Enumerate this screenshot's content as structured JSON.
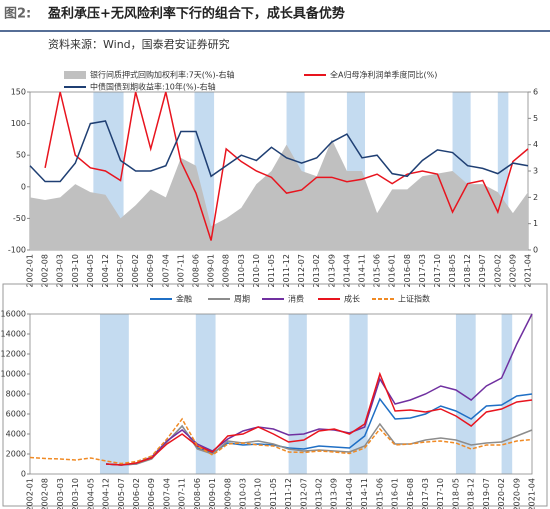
{
  "header": {
    "figure_label": "图2:",
    "title": "盈利承压+无风险利率下行的组合下，成长具备优势",
    "source": "资料来源：Wind，国泰君安证券研究"
  },
  "chart_data": [
    {
      "type": "line",
      "categories": [
        "2002-01",
        "2002-08",
        "2003-03",
        "2003-10",
        "2004-05",
        "2004-12",
        "2005-07",
        "2006-02",
        "2006-09",
        "2007-04",
        "2007-11",
        "2008-06",
        "2009-01",
        "2009-08",
        "2010-03",
        "2010-10",
        "2011-05",
        "2011-12",
        "2012-07",
        "2013-02",
        "2013-09",
        "2014-04",
        "2014-11",
        "2015-06",
        "2016-01",
        "2016-08",
        "2017-03",
        "2017-10",
        "2018-05",
        "2018-12",
        "2019-07",
        "2020-02",
        "2020-09",
        "2021-04"
      ],
      "ylim": [
        -100,
        150
      ],
      "yticks": [
        -100,
        -50,
        0,
        50,
        100,
        150
      ],
      "y2lim": [
        0,
        6
      ],
      "y2ticks": [
        0,
        1,
        2,
        3,
        4,
        5,
        6
      ],
      "highlights": [
        [
          4.2,
          6
        ],
        [
          10.9,
          12
        ],
        [
          17,
          18
        ],
        [
          21,
          22
        ],
        [
          28,
          29
        ],
        [
          31,
          31.5
        ]
      ],
      "series": [
        {
          "name": "银行间质押式回购加权利率:7天(%)-右轴",
          "type": "area",
          "axis": "y2",
          "color": "#c0c0c0",
          "values": [
            2.0,
            1.9,
            2.0,
            2.5,
            2.2,
            2.1,
            1.2,
            1.7,
            2.3,
            2.0,
            3.5,
            3.2,
            0.9,
            1.2,
            1.6,
            2.5,
            3.0,
            4.0,
            3.0,
            2.8,
            4.2,
            3.0,
            3.0,
            1.4,
            2.3,
            2.3,
            2.8,
            2.9,
            3.0,
            2.5,
            2.5,
            2.2,
            1.4,
            2.2
          ]
        },
        {
          "name": "全A归母净利润单季度同比(%)",
          "type": "line",
          "color": "#e8141e",
          "values": [
            null,
            30,
            150,
            50,
            30,
            25,
            10,
            150,
            60,
            150,
            40,
            -10,
            -85,
            60,
            40,
            25,
            15,
            -10,
            -5,
            15,
            15,
            8,
            12,
            20,
            5,
            20,
            25,
            20,
            -40,
            5,
            10,
            -40,
            40,
            60
          ]
        },
        {
          "name": "中债国债到期收益率:10年(%)-右轴",
          "type": "line",
          "axis": "y2",
          "color": "#1f3f73",
          "values": [
            3.2,
            2.6,
            2.6,
            3.3,
            4.8,
            4.9,
            3.4,
            3.0,
            3.0,
            3.2,
            4.5,
            4.5,
            2.8,
            3.2,
            3.6,
            3.4,
            3.9,
            3.5,
            3.3,
            3.5,
            4.1,
            4.4,
            3.5,
            3.6,
            2.9,
            2.8,
            3.4,
            3.8,
            3.7,
            3.2,
            3.1,
            2.9,
            3.3,
            3.2
          ]
        }
      ]
    },
    {
      "type": "line",
      "categories": [
        "2002-01",
        "2002-08",
        "2003-03",
        "2003-10",
        "2004-05",
        "2004-12",
        "2005-07",
        "2006-02",
        "2006-09",
        "2007-04",
        "2007-11",
        "2008-06",
        "2009-01",
        "2009-08",
        "2010-03",
        "2010-10",
        "2011-05",
        "2011-12",
        "2012-07",
        "2013-02",
        "2013-09",
        "2014-04",
        "2014-11",
        "2015-06",
        "2016-01",
        "2016-08",
        "2017-03",
        "2017-10",
        "2018-05",
        "2018-12",
        "2019-07",
        "2020-02",
        "2020-09",
        "2021-04"
      ],
      "ylim": [
        0,
        16000
      ],
      "yticks": [
        0,
        2000,
        4000,
        6000,
        8000,
        10000,
        12000,
        14000,
        16000
      ],
      "highlights": [
        [
          4.6,
          6.3
        ],
        [
          10.9,
          12
        ],
        [
          17,
          18
        ],
        [
          21,
          22
        ],
        [
          28,
          29.1
        ],
        [
          31,
          31.5
        ]
      ],
      "series": [
        {
          "name": "金融",
          "color": "#1f6fc5",
          "values": [
            null,
            null,
            null,
            null,
            null,
            1000,
            900,
            1000,
            1600,
            3200,
            4800,
            2600,
            2100,
            3100,
            2900,
            3000,
            2900,
            2600,
            2500,
            2800,
            2700,
            2600,
            3800,
            7500,
            5500,
            5600,
            6000,
            6800,
            6300,
            5500,
            6800,
            6900,
            7800,
            8000
          ]
        },
        {
          "name": "周期",
          "color": "#8c8c8c",
          "values": [
            null,
            null,
            null,
            null,
            null,
            1000,
            900,
            1000,
            1500,
            3200,
            4800,
            2500,
            2000,
            3300,
            3100,
            3300,
            3000,
            2500,
            2300,
            2400,
            2300,
            2200,
            2800,
            5000,
            3000,
            3000,
            3400,
            3600,
            3400,
            2900,
            3100,
            3200,
            3800,
            4400
          ]
        },
        {
          "name": "消费",
          "color": "#7030a0",
          "values": [
            null,
            null,
            null,
            null,
            null,
            1000,
            900,
            1100,
            1700,
            3300,
            4400,
            3000,
            2300,
            3500,
            4300,
            4700,
            4500,
            3900,
            4000,
            4500,
            4400,
            4100,
            4700,
            9500,
            7000,
            7400,
            8000,
            8800,
            8400,
            7400,
            8800,
            9600,
            13000,
            16000
          ]
        },
        {
          "name": "成长",
          "color": "#e8141e",
          "values": [
            null,
            null,
            null,
            null,
            null,
            1000,
            900,
            1100,
            1600,
            3000,
            4000,
            2800,
            2200,
            3800,
            4000,
            4700,
            4000,
            3200,
            3400,
            4300,
            4500,
            4000,
            5000,
            10000,
            6300,
            6400,
            6200,
            6500,
            5800,
            4800,
            6200,
            6500,
            7200,
            7400
          ]
        },
        {
          "name": "上证指数",
          "color": "#f08a24",
          "dash": true,
          "values": [
            1650,
            1550,
            1500,
            1400,
            1600,
            1300,
            1050,
            1250,
            1800,
            3500,
            5500,
            2800,
            1900,
            3000,
            3100,
            2900,
            2800,
            2200,
            2150,
            2300,
            2200,
            2050,
            2600,
            4500,
            2900,
            3000,
            3200,
            3300,
            3100,
            2500,
            2900,
            2900,
            3300,
            3450
          ]
        }
      ]
    }
  ]
}
